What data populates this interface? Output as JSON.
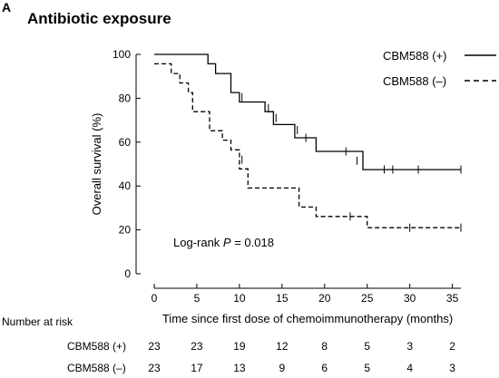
{
  "panel_label": "A",
  "chart_data": {
    "type": "line",
    "subtype": "kaplan-meier",
    "title": "Antibiotic exposure",
    "xlabel": "Time since first dose of chemoimmunotherapy (months)",
    "ylabel": "Overall survival (%)",
    "xlim": [
      0,
      36
    ],
    "ylim": [
      0,
      100
    ],
    "xticks": [
      0,
      5,
      10,
      15,
      20,
      25,
      30,
      35
    ],
    "yticks": [
      0,
      20,
      40,
      60,
      80,
      100
    ],
    "grid": false,
    "legend_position": "top-right",
    "annotation": {
      "prefix": "Log-rank ",
      "p_symbol": "P",
      "suffix": " = 0.018"
    },
    "series": [
      {
        "name": "CBM588 (+)",
        "line_style": "solid",
        "color": "#000000",
        "steps": [
          [
            0,
            100
          ],
          [
            6.3,
            100
          ],
          [
            6.3,
            95.7
          ],
          [
            7.2,
            95.7
          ],
          [
            7.2,
            91.3
          ],
          [
            9.0,
            91.3
          ],
          [
            9.0,
            82.6
          ],
          [
            10.0,
            82.6
          ],
          [
            10.0,
            78.3
          ],
          [
            13.0,
            78.3
          ],
          [
            13.0,
            73.9
          ],
          [
            14.0,
            73.9
          ],
          [
            14.0,
            68.0
          ],
          [
            16.5,
            68.0
          ],
          [
            16.5,
            62.0
          ],
          [
            19.0,
            62.0
          ],
          [
            19.0,
            55.8
          ],
          [
            24.5,
            55.8
          ],
          [
            24.5,
            47.5
          ],
          [
            36.0,
            47.5
          ]
        ],
        "censors": [
          [
            10.3,
            80.5
          ],
          [
            13.4,
            75.5
          ],
          [
            14.3,
            71.0
          ],
          [
            16.8,
            65.5
          ],
          [
            17.8,
            62.0
          ],
          [
            22.5,
            55.8
          ],
          [
            23.8,
            51.5
          ],
          [
            27.0,
            47.5
          ],
          [
            28.0,
            47.5
          ],
          [
            31.0,
            47.5
          ],
          [
            36.0,
            47.5
          ]
        ]
      },
      {
        "name": "CBM588 (–)",
        "line_style": "dashed",
        "color": "#000000",
        "steps": [
          [
            0,
            95.7
          ],
          [
            2.0,
            95.7
          ],
          [
            2.0,
            91.3
          ],
          [
            3.0,
            91.3
          ],
          [
            3.0,
            87.0
          ],
          [
            4.0,
            87.0
          ],
          [
            4.0,
            82.6
          ],
          [
            4.5,
            82.6
          ],
          [
            4.5,
            73.9
          ],
          [
            6.5,
            73.9
          ],
          [
            6.5,
            65.2
          ],
          [
            8.0,
            65.2
          ],
          [
            8.0,
            60.9
          ],
          [
            9.0,
            60.9
          ],
          [
            9.0,
            56.5
          ],
          [
            10.0,
            56.5
          ],
          [
            10.0,
            47.8
          ],
          [
            11.0,
            47.8
          ],
          [
            11.0,
            39.1
          ],
          [
            17.0,
            39.1
          ],
          [
            17.0,
            30.4
          ],
          [
            19.0,
            30.4
          ],
          [
            19.0,
            26.1
          ],
          [
            25.0,
            26.1
          ],
          [
            25.0,
            21.0
          ],
          [
            36.0,
            21.0
          ]
        ],
        "censors": [
          [
            10.3,
            52.0
          ],
          [
            23.0,
            26.1
          ],
          [
            30.0,
            21.0
          ],
          [
            36.0,
            21.0
          ]
        ]
      }
    ]
  },
  "risk_table": {
    "header": "Number at risk",
    "rows": [
      {
        "label": "CBM588 (+)",
        "values": [
          "23",
          "23",
          "19",
          "12",
          "8",
          "5",
          "3",
          "2"
        ]
      },
      {
        "label": "CBM588 (–)",
        "values": [
          "23",
          "17",
          "13",
          "9",
          "6",
          "5",
          "4",
          "3"
        ]
      }
    ]
  }
}
